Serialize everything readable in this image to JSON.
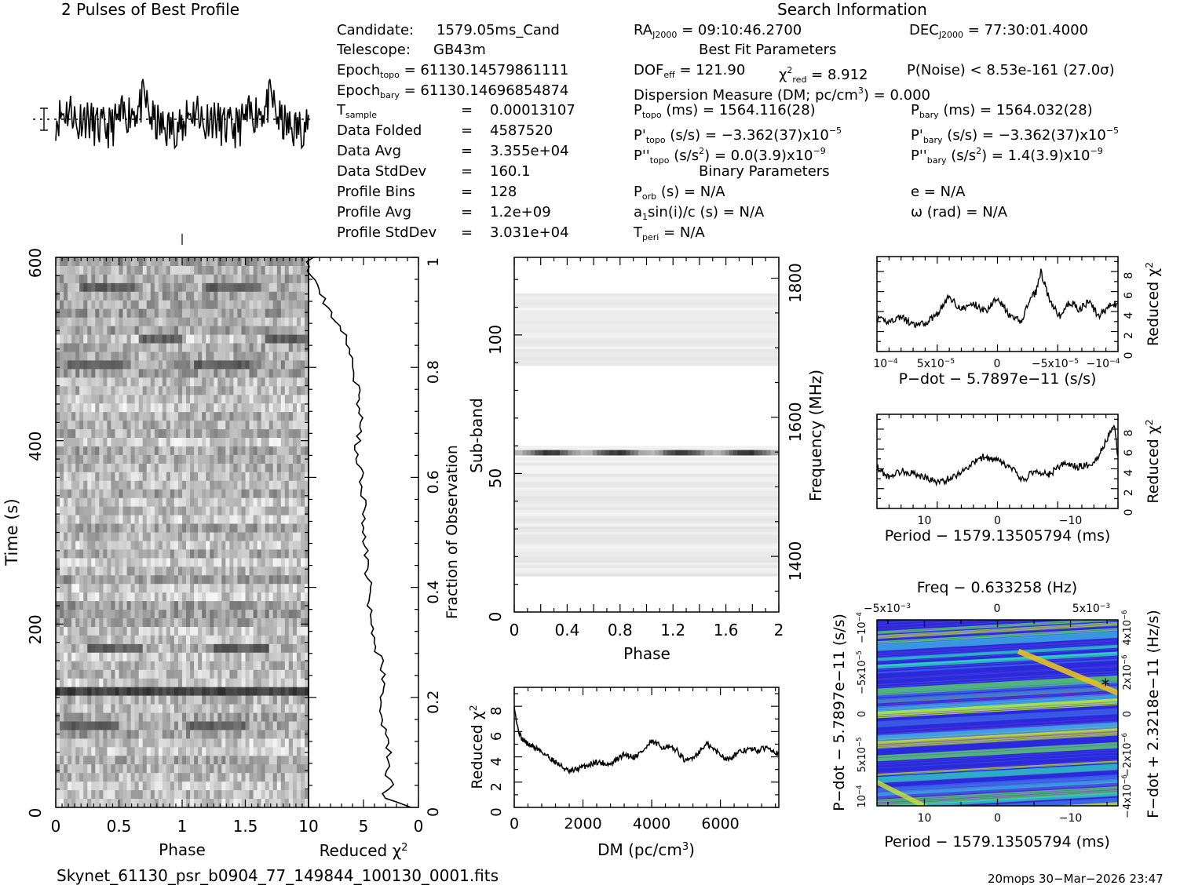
{
  "header": {
    "profile_title": "2 Pulses of Best Profile",
    "search_title": "Search Information",
    "best_fit_title": "Best Fit Parameters",
    "binary_title": "Binary Parameters"
  },
  "candidate": {
    "candidate_label": "Candidate:",
    "candidate_value": "1579.05ms_Cand",
    "telescope_label": "Telescope:",
    "telescope_value": "GB43m",
    "epoch_topo_label": "Epoch",
    "epoch_topo_sub": "topo",
    "epoch_topo_value": "= 61130.14579861111",
    "epoch_bary_label": "Epoch",
    "epoch_bary_sub": "bary",
    "epoch_bary_value": "= 61130.14696854874",
    "tsample_label": "T",
    "tsample_sub": "sample",
    "tsample_value": "0.00013107",
    "folded_label": "Data Folded",
    "folded_value": "4587520",
    "avg_label": "Data Avg",
    "avg_value": "3.355e+04",
    "std_label": "Data StdDev",
    "std_value": "160.1",
    "bins_label": "Profile Bins",
    "bins_value": "128",
    "pavg_label": "Profile Avg",
    "pavg_value": "1.2e+09",
    "pstd_label": "Profile StdDev",
    "pstd_value": "3.031e+04",
    "eq": "="
  },
  "search": {
    "ra_label": "RA",
    "ra_sub": "J2000",
    "ra_value": "= 09:10:46.2700",
    "dec_label": "DEC",
    "dec_sub": "J2000",
    "dec_value": "= 77:30:01.4000",
    "dof_label": "DOF",
    "dof_sub": "eff",
    "dof_value": "= 121.90",
    "chi_label": "χ",
    "chi_sup": "2",
    "chi_sub": "red",
    "chi_value": "= 8.912",
    "pnoise": "P(Noise) < 8.53e-161   (27.0σ)",
    "dm_text": "Dispersion Measure (DM; pc/cm",
    "dm_sup": "3",
    "dm_value": ") = 0.000",
    "ptopo_label": "P",
    "ptopo_sub": "topo",
    "ptopo_value": " (ms) =  1564.116(28)",
    "pbary_label": "P",
    "pbary_sub": "bary",
    "pbary_value": " (ms) =  1564.032(28)",
    "pdtopo_label": "P'",
    "pdtopo_sub": "topo",
    "pdtopo_value": " (s/s) = −3.362(37)x10",
    "pdtopo_exp": "−5",
    "pdbary_label": "P'",
    "pdbary_sub": "bary",
    "pdbary_value": " (s/s) = −3.362(37)x10",
    "pdbary_exp": "−5",
    "pddtopo_label": "P''",
    "pddtopo_sub": "topo",
    "pddtopo_value": " (s/s",
    "pddtopo_sup": "2",
    "pddtopo_value2": ") = 0.0(3.9)x10",
    "pddtopo_exp": "−9",
    "pddbary_label": "P''",
    "pddbary_sub": "bary",
    "pddbary_value": " (s/s",
    "pddbary_sup": "2",
    "pddbary_value2": ") =  1.4(3.9)x10",
    "pddbary_exp": "−9",
    "porb_label": "P",
    "porb_sub": "orb",
    "porb_value": " (s) = N/A",
    "e_text": "e = N/A",
    "a1_label": "a",
    "a1_sub": "1",
    "a1_value": "sin(i)/c (s) = N/A",
    "omega_text": "ω (rad) = N/A",
    "tperi_label": "T",
    "tperi_sub": "peri",
    "tperi_value": " = N/A"
  },
  "footer": {
    "filename": "Skynet_61130_psr_b0904_77_149844_100130_0001.fits",
    "stamp": "20mops 30−Mar−2026 23:47"
  },
  "chart_data": [
    {
      "name": "profile",
      "type": "line",
      "title": "2 Pulses of Best Profile",
      "x_range": [
        0,
        2
      ],
      "n_bins": 128
    },
    {
      "name": "time_phase",
      "type": "heatmap",
      "xlabel": "Phase",
      "ylabel": "Time (s)",
      "xlim": [
        0,
        2
      ],
      "ylim": [
        0,
        600
      ],
      "x_ticks": [
        "0",
        "0.5",
        "1",
        "1.5"
      ],
      "y_ticks": [
        "0",
        "200",
        "400",
        "600"
      ],
      "strong_rows_time_s": [
        118,
        80,
        170,
        480,
        565,
        510
      ]
    },
    {
      "name": "reduced_chi2_vs_time",
      "type": "line",
      "xlabel": "Reduced χ",
      "xlabel_sup": "2",
      "ylabel": "Fraction of Observation",
      "xlim": [
        10,
        0
      ],
      "ylim": [
        0,
        1
      ],
      "x_ticks": [
        "10",
        "5",
        "0"
      ],
      "y_ticks": [
        "0",
        "0.2",
        "0.4",
        "0.6",
        "0.8",
        "1"
      ],
      "fraction": [
        0.0,
        0.02,
        0.04,
        0.06,
        0.08,
        0.1,
        0.15,
        0.2,
        0.25,
        0.3,
        0.35,
        0.4,
        0.45,
        0.5,
        0.55,
        0.6,
        0.65,
        0.7,
        0.75,
        0.8,
        0.85,
        0.88,
        0.92,
        0.96,
        0.98,
        1.0
      ],
      "chi2": [
        1.0,
        3.5,
        2.5,
        3.0,
        2.5,
        2.7,
        3.2,
        3.5,
        3.2,
        4.0,
        4.3,
        4.5,
        4.7,
        4.9,
        5.0,
        5.2,
        5.8,
        5.0,
        5.5,
        6.0,
        6.5,
        7.5,
        8.5,
        9.5,
        10.0,
        9.8
      ]
    },
    {
      "name": "subband_phase",
      "type": "heatmap",
      "xlabel": "Phase",
      "ylabel": "Sub-band",
      "y2label": "Frequency (MHz)",
      "xlim": [
        0,
        2
      ],
      "ylim": [
        0,
        128
      ],
      "x_ticks": [
        "0",
        "0.4",
        "0.8",
        "1.2",
        "1.6",
        "2"
      ],
      "y_ticks": [
        "0",
        "50",
        "100"
      ],
      "y2_ticks": [
        "1400",
        "1600",
        "1800"
      ],
      "bands": [
        [
          13,
          56
        ],
        [
          59,
          60
        ],
        [
          89,
          115
        ]
      ],
      "strong_band": 57.5
    },
    {
      "name": "dm_curve",
      "type": "line",
      "xlabel": "DM (pc/cm",
      "xlabel_sup": "3",
      "xlabel_end": ")",
      "ylabel": "Reduced χ",
      "ylabel_sup": "2",
      "xlim": [
        0,
        7700
      ],
      "ylim": [
        0,
        9.5
      ],
      "x_ticks": [
        "0",
        "2000",
        "4000",
        "6000"
      ],
      "y_ticks": [
        "0",
        "2",
        "4",
        "6",
        "8"
      ],
      "x": [
        0,
        80,
        200,
        400,
        700,
        1000,
        1300,
        1600,
        2000,
        2400,
        2800,
        3200,
        3500,
        3800,
        4000,
        4300,
        4700,
        5000,
        5300,
        5600,
        5900,
        6200,
        6500,
        6800,
        7100,
        7400,
        7700
      ],
      "y": [
        8.2,
        6.5,
        5.5,
        5.0,
        4.6,
        4.0,
        3.4,
        2.8,
        3.2,
        3.6,
        3.4,
        4.2,
        4.0,
        4.6,
        5.2,
        4.8,
        4.6,
        3.6,
        4.2,
        5.0,
        4.4,
        3.8,
        4.3,
        4.6,
        4.5,
        4.8,
        4.2
      ]
    },
    {
      "name": "pdot_curve",
      "type": "line",
      "xlabel": "P−dot − 5.7897e−11 (s/s)",
      "ylabel": "Reduced χ",
      "ylabel_sup": "2",
      "x_ticks": [
        "10",
        "5x10",
        "0",
        "−5x10",
        "−10"
      ],
      "x_tick_exps": [
        "−4",
        "−5",
        "",
        "−5",
        "−4"
      ],
      "y_ticks": [
        "0",
        "2",
        "4",
        "6",
        "8"
      ],
      "xlim": [
        0,
        1
      ],
      "ylim": [
        0,
        9.5
      ],
      "x": [
        0.0,
        0.05,
        0.1,
        0.15,
        0.2,
        0.25,
        0.3,
        0.35,
        0.4,
        0.45,
        0.5,
        0.55,
        0.6,
        0.63,
        0.66,
        0.68,
        0.72,
        0.76,
        0.8,
        0.84,
        0.88,
        0.92,
        0.96,
        1.0
      ],
      "y": [
        3.2,
        3.0,
        3.5,
        2.6,
        2.8,
        3.8,
        5.5,
        4.2,
        4.8,
        4.0,
        5.5,
        3.5,
        3.0,
        5.0,
        6.0,
        8.0,
        4.8,
        3.5,
        5.0,
        4.2,
        5.0,
        3.5,
        4.5,
        4.8
      ]
    },
    {
      "name": "period_curve",
      "type": "line",
      "xlabel": "Period − 1579.13505794 (ms)",
      "ylabel": "Reduced χ",
      "ylabel_sup": "2",
      "x_ticks": [
        "10",
        "0",
        "−10"
      ],
      "y_ticks": [
        "0",
        "2",
        "4",
        "6",
        "8"
      ],
      "xlim": [
        16.5,
        -16.5
      ],
      "ylim": [
        0,
        9.5
      ],
      "x": [
        16.5,
        15,
        13,
        11,
        9.5,
        8,
        6,
        4,
        2,
        0,
        -2,
        -3.5,
        -5,
        -7,
        -9,
        -11,
        -13,
        -14,
        -15,
        -16,
        -16.5
      ],
      "y": [
        4.2,
        3.2,
        3.8,
        3.4,
        3.0,
        2.6,
        3.2,
        4.2,
        5.2,
        4.8,
        4.0,
        2.8,
        3.8,
        3.4,
        4.5,
        4.2,
        4.5,
        5.5,
        7.0,
        8.5,
        5.0
      ]
    },
    {
      "name": "p_pdot_plane",
      "type": "heatmap",
      "title": "Freq − 0.633258 (Hz)",
      "xlabel": "Period − 1579.13505794 (ms)",
      "ylabel": "P−dot − 5.7897e−11 (s/s)",
      "y2label": "F−dot + 2.3218e−11 (Hz/s)",
      "x_ticks": [
        "10",
        "0",
        "−10"
      ],
      "top_ticks": [
        "−5x10",
        "0",
        "5x10"
      ],
      "top_tick_exp": "−3",
      "y_ticks": [
        "10",
        "5x10",
        "0",
        "−5x10",
        "−10"
      ],
      "y_tick_exps": [
        "−4",
        "−5",
        "",
        "−5",
        "−4"
      ],
      "y2_ticks": [
        "−4x10",
        "−2x10",
        "0",
        "2x10",
        "4x10"
      ],
      "y2_tick_exp": "−6",
      "colors": [
        "#2a2adc",
        "#3c68e8",
        "#3fb8e4",
        "#30d8c0",
        "#60e060",
        "#c8e828",
        "#e8c020"
      ],
      "best_marker": "*"
    }
  ]
}
